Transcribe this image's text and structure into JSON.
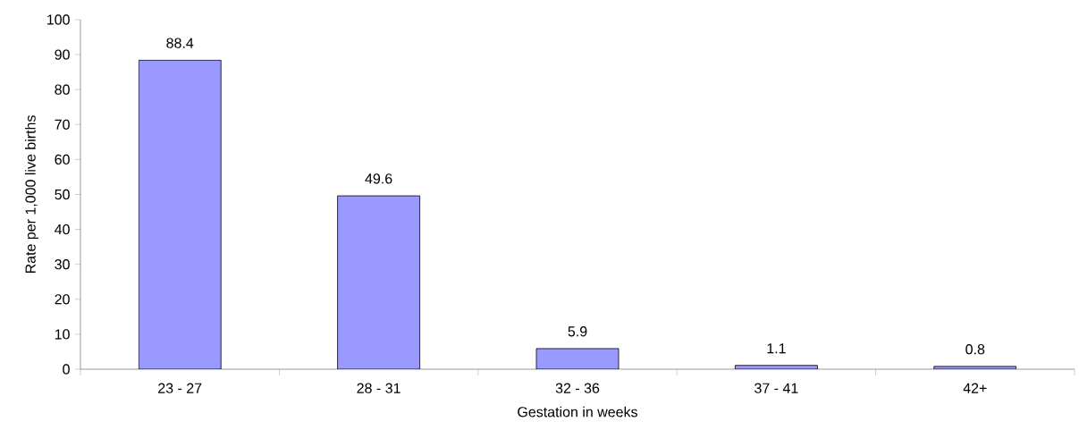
{
  "chart_data": {
    "type": "bar",
    "xlabel": "Gestation in weeks",
    "ylabel": "Rate per 1,000 live births",
    "categories": [
      "23 - 27",
      "28 - 31",
      "32 - 36",
      "37 - 41",
      "42+"
    ],
    "values": [
      88.4,
      49.6,
      5.9,
      1.1,
      0.8
    ],
    "color": "#9999ff",
    "ylim": [
      0,
      100
    ],
    "yticks": [
      0,
      10,
      20,
      30,
      40,
      50,
      60,
      70,
      80,
      90,
      100
    ],
    "data_labels": true
  }
}
